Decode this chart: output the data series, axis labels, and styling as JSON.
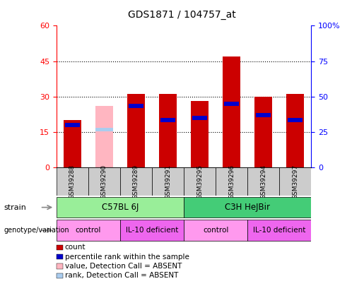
{
  "title": "GDS1871 / 104757_at",
  "samples": [
    "GSM39288",
    "GSM39290",
    "GSM39289",
    "GSM39291",
    "GSM39295",
    "GSM39296",
    "GSM39294",
    "GSM39297"
  ],
  "absent_samples": [
    1
  ],
  "red_bar_heights": [
    20,
    26,
    31,
    31,
    28,
    47,
    30,
    31
  ],
  "percentile_values": [
    18,
    16,
    26,
    20,
    21,
    27,
    22,
    20
  ],
  "ylim_left": [
    0,
    60
  ],
  "ylim_right": [
    0,
    100
  ],
  "yticks_left": [
    0,
    15,
    30,
    45,
    60
  ],
  "ytick_labels_left": [
    "0",
    "15",
    "30",
    "45",
    "60"
  ],
  "ytick_labels_right": [
    "0",
    "25",
    "50",
    "75",
    "100%"
  ],
  "grid_lines": [
    15,
    30,
    45
  ],
  "bar_width": 0.55,
  "red_color": "#CC0000",
  "pink_color": "#FFB6C1",
  "blue_color": "#0000CC",
  "light_blue_color": "#AACCEE",
  "bar_bg_color": "#CCCCCC",
  "plot_bg_color": "#FFFFFF",
  "strain_labels": [
    {
      "text": "C57BL 6J",
      "start": 0,
      "end": 3,
      "color": "#99EE99"
    },
    {
      "text": "C3H HeJBir",
      "start": 4,
      "end": 7,
      "color": "#44CC77"
    }
  ],
  "genotype_labels": [
    {
      "text": "control",
      "start": 0,
      "end": 1,
      "color": "#FF99EE"
    },
    {
      "text": "IL-10 deficient",
      "start": 2,
      "end": 3,
      "color": "#EE66EE"
    },
    {
      "text": "control",
      "start": 4,
      "end": 5,
      "color": "#FF99EE"
    },
    {
      "text": "IL-10 deficient",
      "start": 6,
      "end": 7,
      "color": "#EE66EE"
    }
  ],
  "legend_items": [
    {
      "label": "count",
      "color": "#CC0000"
    },
    {
      "label": "percentile rank within the sample",
      "color": "#0000CC"
    },
    {
      "label": "value, Detection Call = ABSENT",
      "color": "#FFB6C1"
    },
    {
      "label": "rank, Detection Call = ABSENT",
      "color": "#AACCEE"
    }
  ]
}
